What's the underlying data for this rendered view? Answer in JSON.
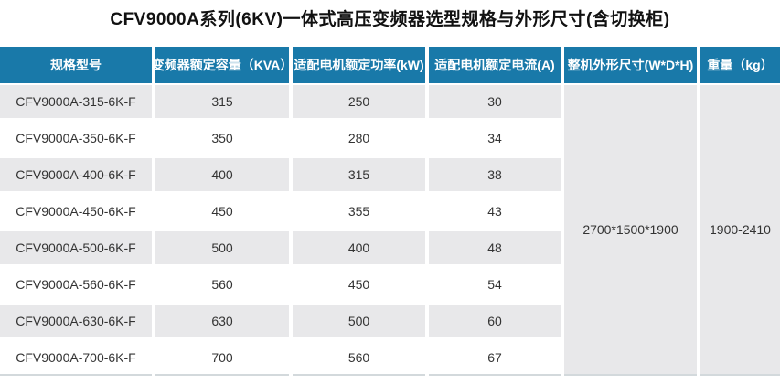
{
  "title": "CFV9000A系列(6KV)一体式高压变频器选型规格与外形尺寸(含切换柜)",
  "table": {
    "headers": [
      "规格型号",
      "变频器额定容量（KVA）",
      "适配电机额定功率(kW)",
      "适配电机额定电流(A)",
      "整机外形尺寸(W*D*H)",
      "重量（kg）"
    ],
    "rows": [
      {
        "model": "CFV9000A-315-6K-F",
        "kva": "315",
        "kw": "250",
        "amp": "30"
      },
      {
        "model": "CFV9000A-350-6K-F",
        "kva": "350",
        "kw": "280",
        "amp": "34"
      },
      {
        "model": "CFV9000A-400-6K-F",
        "kva": "400",
        "kw": "315",
        "amp": "38"
      },
      {
        "model": "CFV9000A-450-6K-F",
        "kva": "450",
        "kw": "355",
        "amp": "43"
      },
      {
        "model": "CFV9000A-500-6K-F",
        "kva": "500",
        "kw": "400",
        "amp": "48"
      },
      {
        "model": "CFV9000A-560-6K-F",
        "kva": "560",
        "kw": "450",
        "amp": "54"
      },
      {
        "model": "CFV9000A-630-6K-F",
        "kva": "630",
        "kw": "500",
        "amp": "60"
      },
      {
        "model": "CFV9000A-700-6K-F",
        "kva": "700",
        "kw": "560",
        "amp": "67"
      }
    ],
    "merged": {
      "dimensions": "2700*1500*1900",
      "weight": "1900-2410"
    }
  },
  "colors": {
    "header_bg": "#1979a9",
    "header_text": "#ffffff",
    "stripe_bg": "#e8e8ea",
    "body_text": "#333333",
    "bottom_border": "#d3d9dc"
  }
}
